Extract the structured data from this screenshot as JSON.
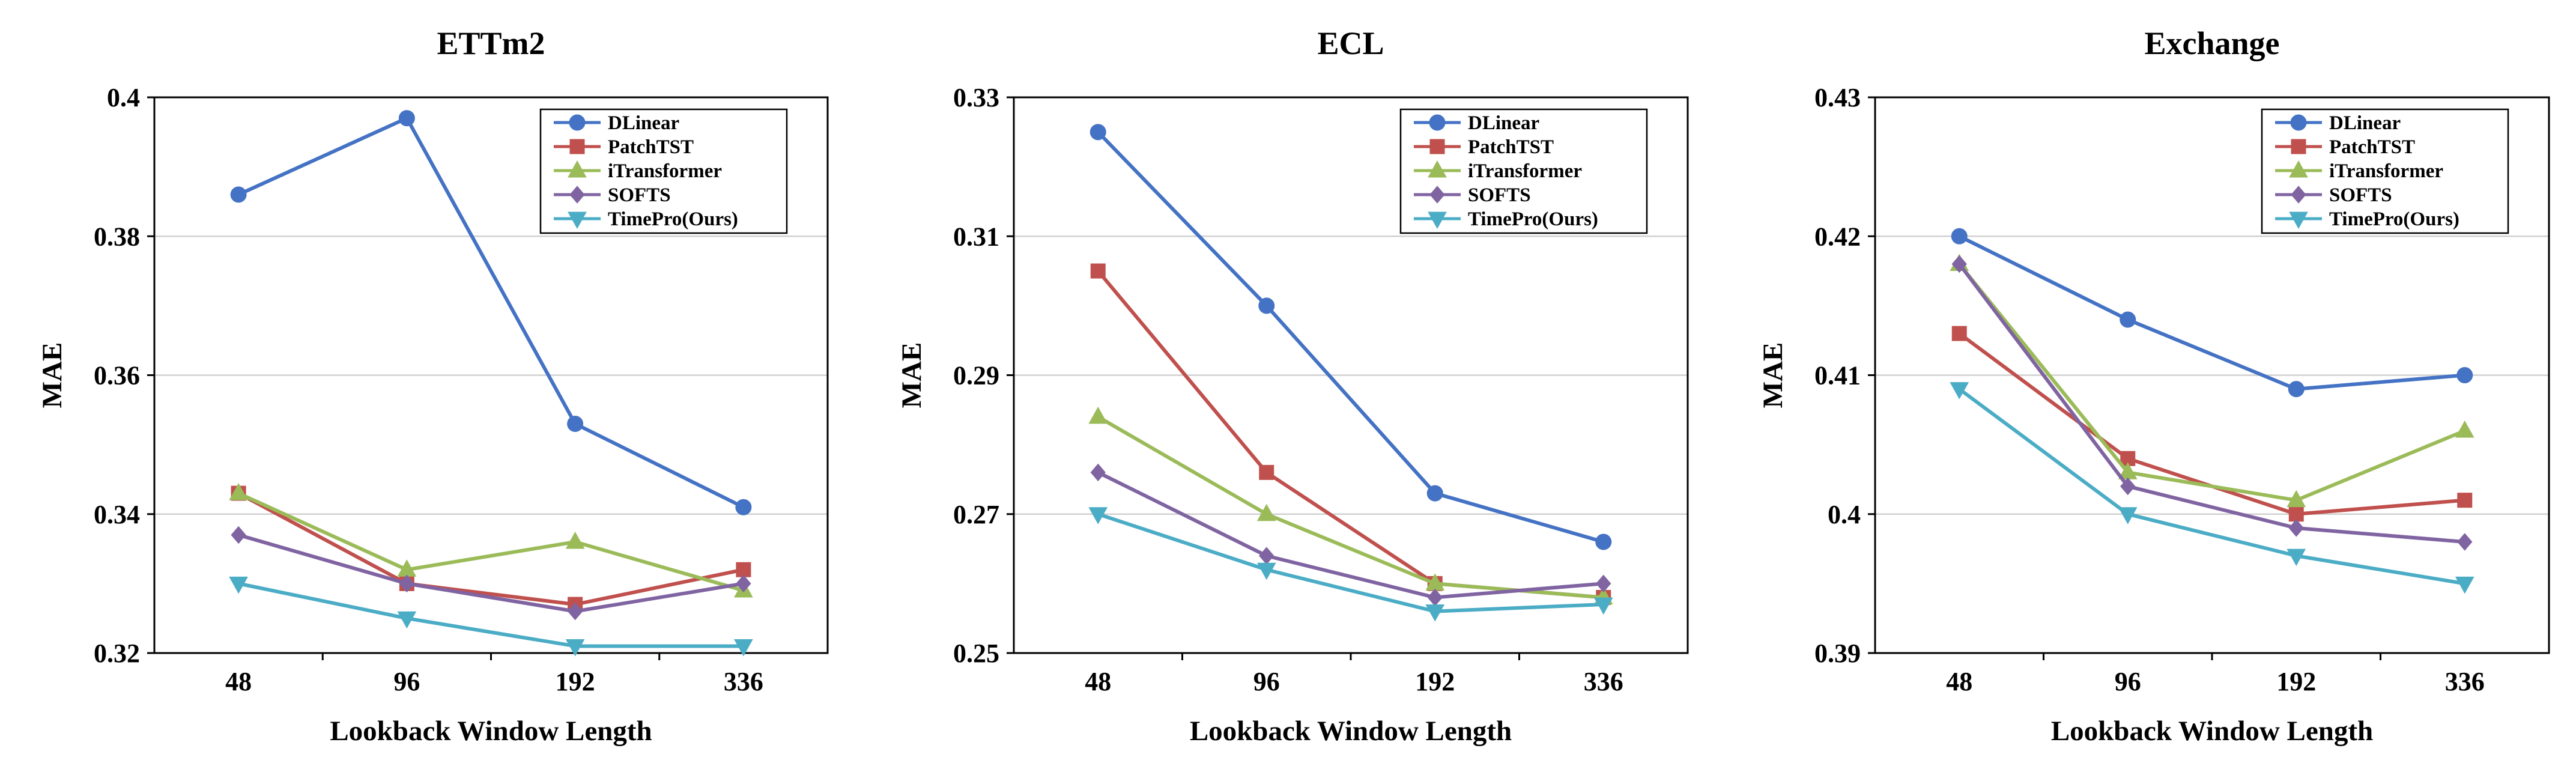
{
  "chart_data": [
    {
      "type": "line",
      "title": "ETTm2",
      "xlabel": "Lookback Window Length",
      "ylabel": "MAE",
      "categories": [
        "48",
        "96",
        "192",
        "336"
      ],
      "ylim": [
        0.32,
        0.4
      ],
      "yticks": [
        "0.32",
        "0.34",
        "0.36",
        "0.38",
        "0.4"
      ],
      "grid": true,
      "legend_position": "top-right",
      "series": [
        {
          "name": "DLinear",
          "color": "#4472c4",
          "marker": "circle",
          "values": [
            0.386,
            0.397,
            0.353,
            0.341
          ]
        },
        {
          "name": "PatchTST",
          "color": "#c0504d",
          "marker": "square",
          "values": [
            0.343,
            0.33,
            0.327,
            0.332
          ]
        },
        {
          "name": "iTransformer",
          "color": "#9bbb59",
          "marker": "triangle-up",
          "values": [
            0.343,
            0.332,
            0.336,
            0.329
          ]
        },
        {
          "name": "SOFTS",
          "color": "#8064a2",
          "marker": "diamond",
          "values": [
            0.337,
            0.33,
            0.326,
            0.33
          ]
        },
        {
          "name": "TimePro(Ours)",
          "color": "#4bacc6",
          "marker": "triangle-down",
          "values": [
            0.33,
            0.325,
            0.321,
            0.321
          ]
        }
      ]
    },
    {
      "type": "line",
      "title": "ECL",
      "xlabel": "Lookback Window Length",
      "ylabel": "MAE",
      "categories": [
        "48",
        "96",
        "192",
        "336"
      ],
      "ylim": [
        0.25,
        0.33
      ],
      "yticks": [
        "0.25",
        "0.27",
        "0.29",
        "0.31",
        "0.33"
      ],
      "grid": true,
      "legend_position": "top-right",
      "series": [
        {
          "name": "DLinear",
          "color": "#4472c4",
          "marker": "circle",
          "values": [
            0.325,
            0.3,
            0.273,
            0.266
          ]
        },
        {
          "name": "PatchTST",
          "color": "#c0504d",
          "marker": "square",
          "values": [
            0.305,
            0.276,
            0.26,
            0.258
          ]
        },
        {
          "name": "iTransformer",
          "color": "#9bbb59",
          "marker": "triangle-up",
          "values": [
            0.284,
            0.27,
            0.26,
            0.258
          ]
        },
        {
          "name": "SOFTS",
          "color": "#8064a2",
          "marker": "diamond",
          "values": [
            0.276,
            0.264,
            0.258,
            0.26
          ]
        },
        {
          "name": "TimePro(Ours)",
          "color": "#4bacc6",
          "marker": "triangle-down",
          "values": [
            0.27,
            0.262,
            0.256,
            0.257
          ]
        }
      ]
    },
    {
      "type": "line",
      "title": "Exchange",
      "xlabel": "Lookback Window Length",
      "ylabel": "MAE",
      "categories": [
        "48",
        "96",
        "192",
        "336"
      ],
      "ylim": [
        0.39,
        0.43
      ],
      "yticks": [
        "0.39",
        "0.4",
        "0.41",
        "0.42",
        "0.43"
      ],
      "grid": true,
      "legend_position": "top-right",
      "series": [
        {
          "name": "DLinear",
          "color": "#4472c4",
          "marker": "circle",
          "values": [
            0.42,
            0.414,
            0.409,
            0.41
          ]
        },
        {
          "name": "PatchTST",
          "color": "#c0504d",
          "marker": "square",
          "values": [
            0.413,
            0.404,
            0.4,
            0.401
          ]
        },
        {
          "name": "iTransformer",
          "color": "#9bbb59",
          "marker": "triangle-up",
          "values": [
            0.418,
            0.403,
            0.401,
            0.406
          ]
        },
        {
          "name": "SOFTS",
          "color": "#8064a2",
          "marker": "diamond",
          "values": [
            0.418,
            0.402,
            0.399,
            0.398
          ]
        },
        {
          "name": "TimePro(Ours)",
          "color": "#4bacc6",
          "marker": "triangle-down",
          "values": [
            0.409,
            0.4,
            0.397,
            0.395
          ]
        }
      ]
    }
  ]
}
